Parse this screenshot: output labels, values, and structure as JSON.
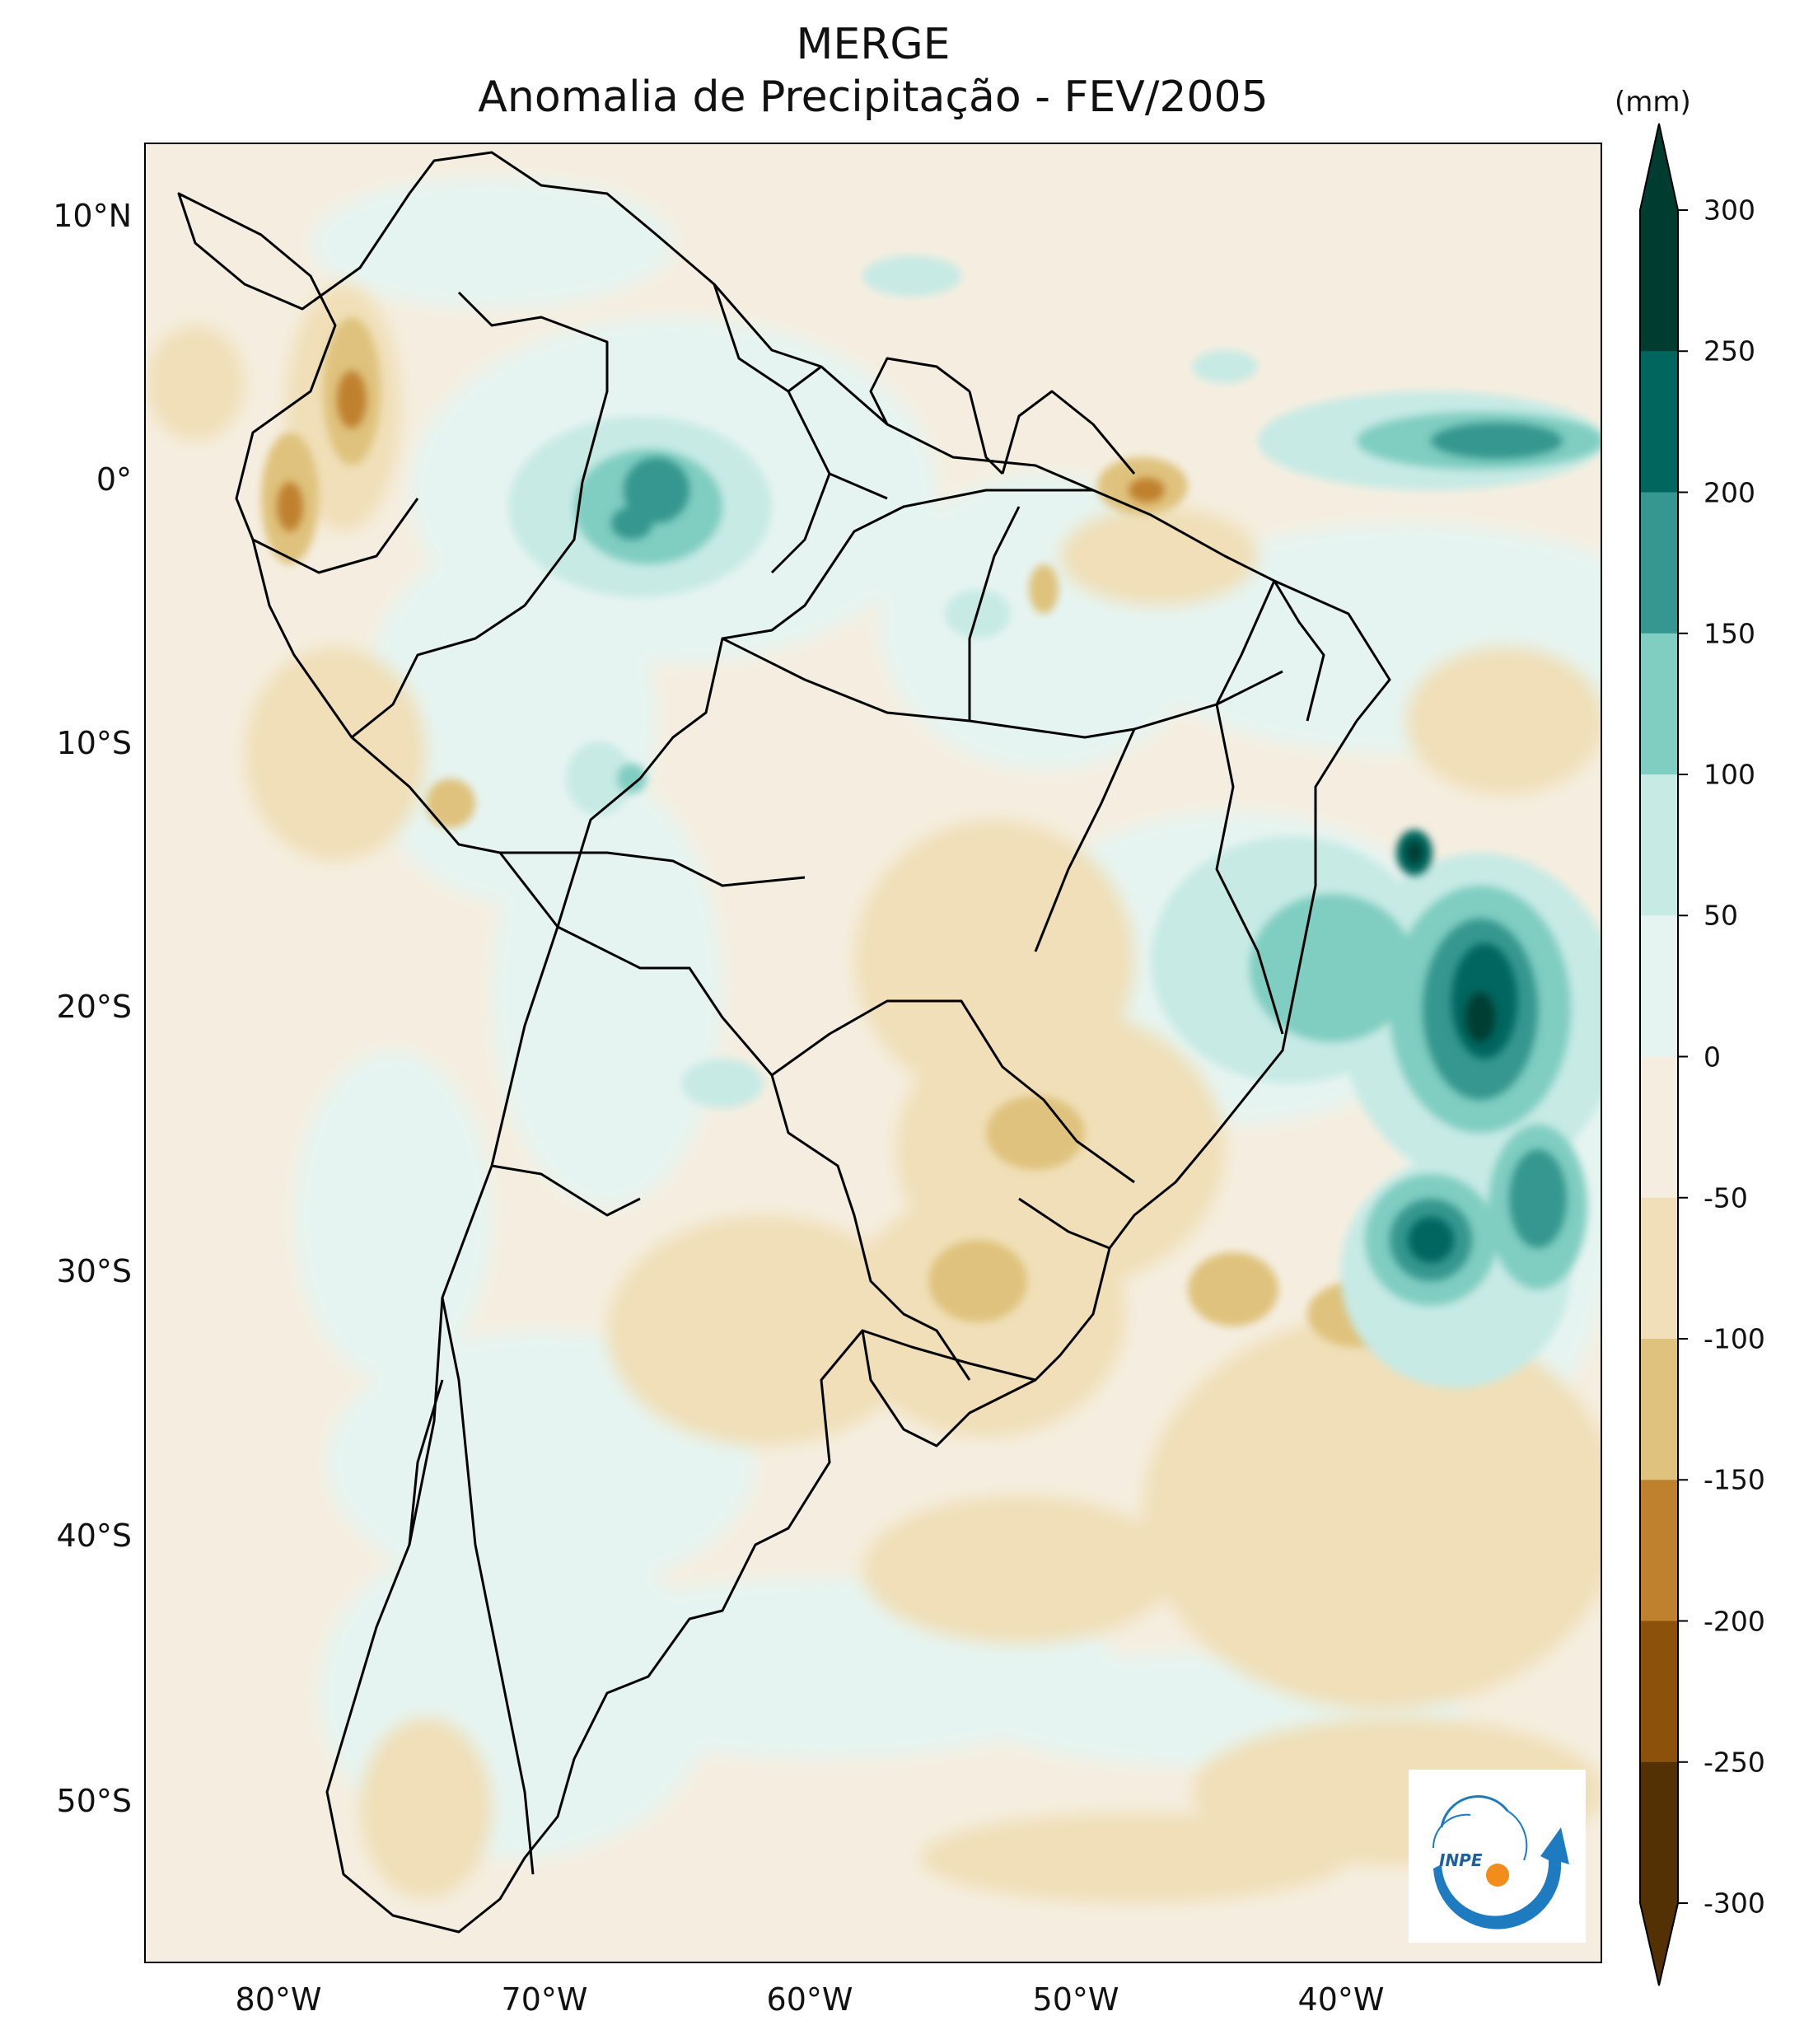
{
  "title": {
    "line1": "MERGE",
    "line2": "Anomalia de Precipitação - FEV/2005"
  },
  "colorbar": {
    "unit": "(mm)",
    "ticks": [
      "300",
      "250",
      "200",
      "150",
      "100",
      "50",
      "0",
      "-50",
      "-100",
      "-150",
      "-200",
      "-250",
      "-300"
    ],
    "colors_top_to_bottom": [
      "#003c30",
      "#01665e",
      "#35978f",
      "#80cdc1",
      "#c7eae5",
      "#e6f4f1",
      "#f5eee0",
      "#f0dfb8",
      "#dfc27d",
      "#bf812d",
      "#8c510a",
      "#543005"
    ]
  },
  "axes": {
    "lat_labels": [
      "10°N",
      "0°",
      "10°S",
      "20°S",
      "30°S",
      "40°S",
      "50°S"
    ],
    "lon_labels": [
      "80°W",
      "70°W",
      "60°W",
      "50°W",
      "40°W"
    ]
  },
  "logo": {
    "text": "INPE"
  }
}
